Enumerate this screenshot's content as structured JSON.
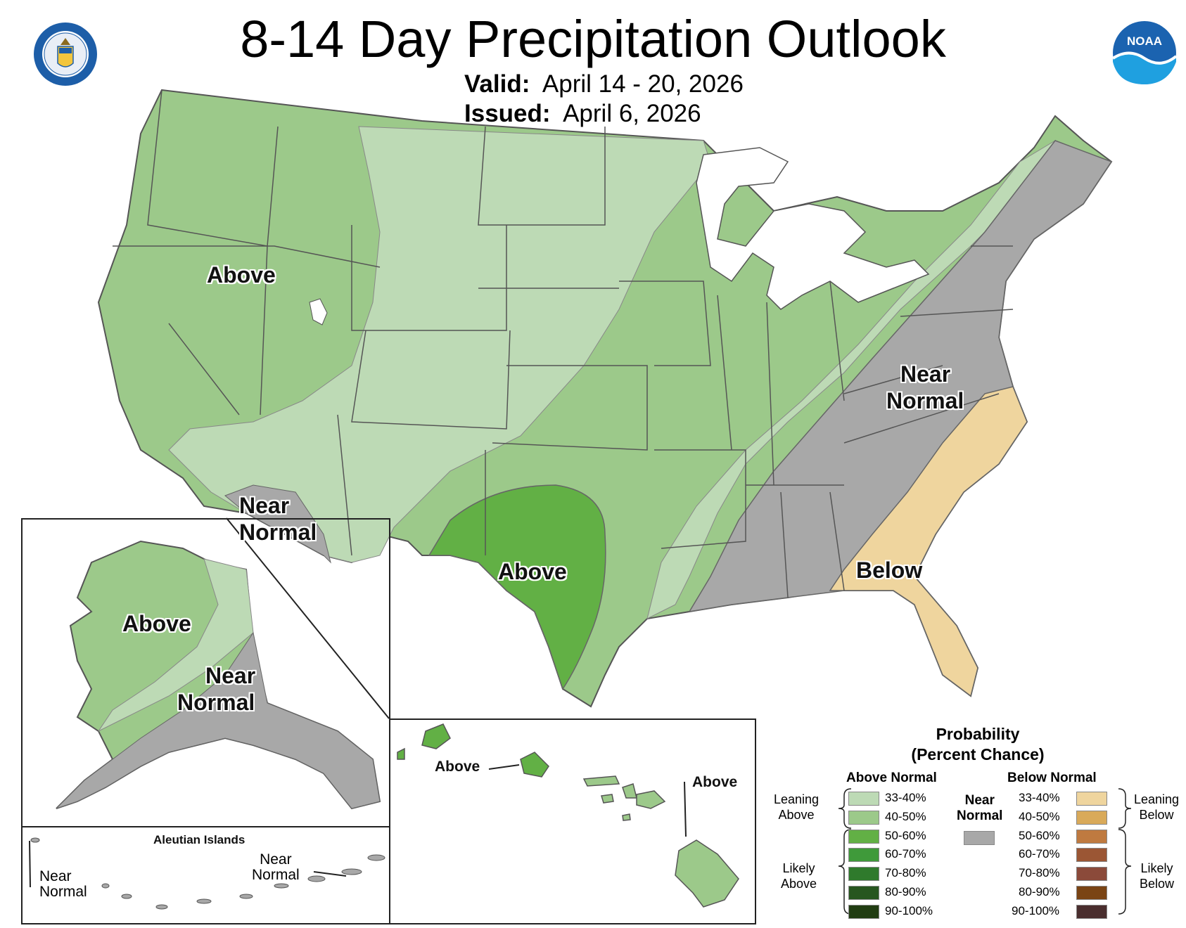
{
  "title": "8-14 Day Precipitation Outlook",
  "valid_label": "Valid:",
  "valid_value": "April 14 - 20, 2026",
  "issued_label": "Issued:",
  "issued_value": "April 6, 2026",
  "logos": {
    "left": "department-of-commerce-seal",
    "right": "noaa-logo",
    "right_text": "NOAA"
  },
  "colors": {
    "above_33_40": "#bddab5",
    "above_40_50": "#9cc98a",
    "above_50_60": "#62b045",
    "above_60_70": "#3f9a3a",
    "above_70_80": "#2f7a2c",
    "above_80_90": "#27561f",
    "above_90_100": "#213d12",
    "near_normal": "#a8a8a8",
    "below_33_40": "#efd59e",
    "below_40_50": "#d9aa5a",
    "below_50_60": "#bf7a40",
    "below_60_70": "#9b5634",
    "below_70_80": "#8b4a3a",
    "below_80_90": "#7a4414",
    "below_90_100": "#4a2e2e"
  },
  "map_labels": {
    "conus_nw_above": "Above",
    "conus_sw_near_1": "Near",
    "conus_sw_near_2": "Normal",
    "conus_texas_above": "Above",
    "conus_east_near_1": "Near",
    "conus_east_near_2": "Normal",
    "conus_se_below": "Below",
    "alaska_above": "Above",
    "alaska_near_1": "Near",
    "alaska_near_2": "Normal",
    "aleutian_title": "Aleutian Islands",
    "aleutian_west_near_1": "Near",
    "aleutian_west_near_2": "Normal",
    "aleutian_east_near_1": "Near",
    "aleutian_east_near_2": "Normal",
    "hawaii_oahu_above": "Above",
    "hawaii_big_island_above": "Above"
  },
  "legend": {
    "title_1": "Probability",
    "title_2": "(Percent Chance)",
    "above_header": "Above Normal",
    "below_header": "Below Normal",
    "near_header_1": "Near",
    "near_header_2": "Normal",
    "leaning_above_1": "Leaning",
    "leaning_above_2": "Above",
    "likely_above_1": "Likely",
    "likely_above_2": "Above",
    "leaning_below_1": "Leaning",
    "leaning_below_2": "Below",
    "likely_below_1": "Likely",
    "likely_below_2": "Below",
    "ranges": [
      "33-40%",
      "40-50%",
      "50-60%",
      "60-70%",
      "70-80%",
      "80-90%",
      "90-100%"
    ]
  }
}
